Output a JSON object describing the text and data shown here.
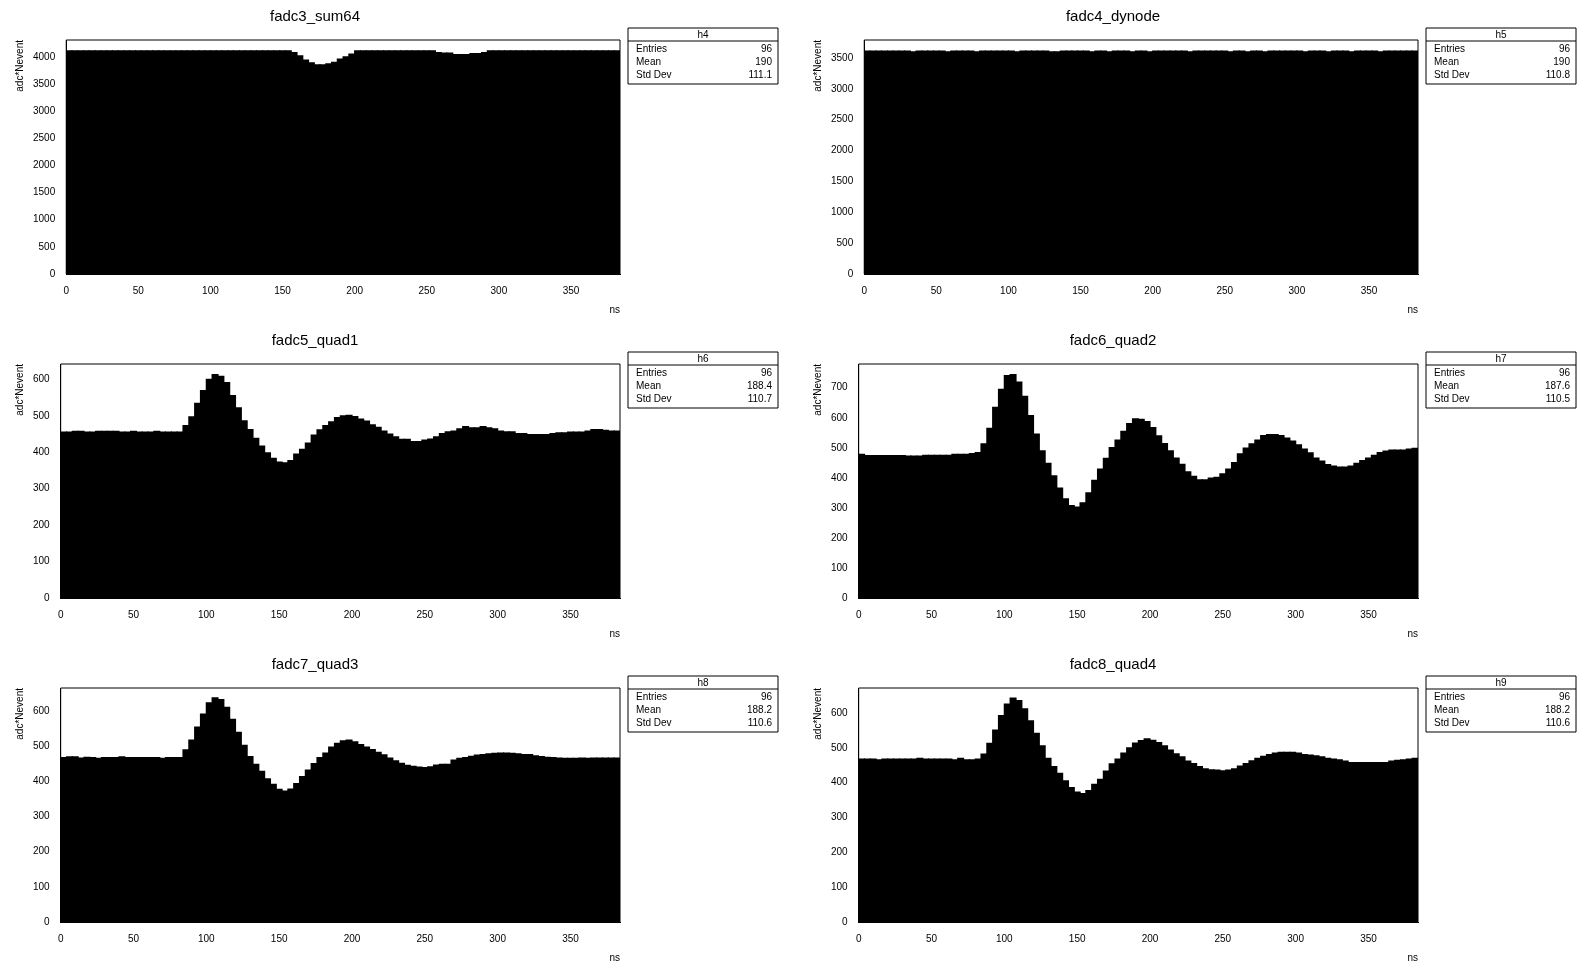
{
  "chart_data": [
    {
      "type": "histogram",
      "title": "fadc3_sum64",
      "xlabel": "ns",
      "ylabel": "adc*Nevent",
      "color": "#000000",
      "grid": false,
      "legend": false,
      "bins": [
        0,
        4,
        8,
        12,
        16,
        20,
        24,
        28,
        32,
        36,
        40,
        44,
        48,
        52,
        56,
        60,
        64,
        68,
        72,
        76,
        80,
        84,
        88,
        92,
        96,
        100,
        104,
        108,
        112,
        116,
        120,
        124,
        128,
        132,
        136,
        140,
        144,
        148,
        152,
        156,
        160,
        164,
        168,
        172,
        176,
        180,
        184,
        188,
        192,
        196,
        200,
        204,
        208,
        212,
        216,
        220,
        224,
        228,
        232,
        236,
        240,
        244,
        248,
        252,
        256,
        260,
        264,
        268,
        272,
        276,
        280,
        284,
        288,
        292,
        296,
        300,
        304,
        308,
        312,
        316,
        320,
        324,
        328,
        332,
        336,
        340,
        344,
        348,
        352,
        356,
        360,
        364,
        368,
        372,
        376,
        380,
        384
      ],
      "values": [
        4110,
        4110,
        4110,
        4110,
        4110,
        4110,
        4110,
        4110,
        4110,
        4110,
        4110,
        4110,
        4110,
        4110,
        4110,
        4110,
        4110,
        4110,
        4110,
        4110,
        4110,
        4110,
        4110,
        4110,
        4110,
        4110,
        4110,
        4110,
        4110,
        4110,
        4110,
        4110,
        4110,
        4110,
        4110,
        4110,
        4110,
        4110,
        4110,
        4080,
        4020,
        3940,
        3890,
        3850,
        3850,
        3870,
        3900,
        3960,
        4000,
        4050,
        4110,
        4110,
        4110,
        4110,
        4110,
        4110,
        4110,
        4110,
        4110,
        4110,
        4110,
        4110,
        4110,
        4110,
        4080,
        4070,
        4070,
        4040,
        4040,
        4040,
        4060,
        4060,
        4080,
        4110,
        4110,
        4110,
        4110,
        4110,
        4110,
        4110,
        4110,
        4110,
        4110,
        4110,
        4110,
        4110,
        4110,
        4110,
        4110,
        4110,
        4110,
        4110,
        4110,
        4110,
        4110,
        4110
      ],
      "xlim": [
        0,
        384
      ],
      "xticks": [
        0,
        50,
        100,
        150,
        200,
        250,
        300,
        350
      ],
      "ylim": [
        0,
        4310
      ],
      "yticks": [
        0,
        500,
        1000,
        1500,
        2000,
        2500,
        3000,
        3500,
        4000
      ],
      "annotations": [
        "h4",
        "Entries",
        "96",
        "Mean",
        "190",
        "Std Dev",
        "111.1"
      ]
    },
    {
      "type": "histogram",
      "title": "fadc4_dynode",
      "xlabel": "ns",
      "ylabel": "adc*Nevent",
      "color": "#000000",
      "grid": false,
      "legend": false,
      "bins": [
        0,
        4,
        8,
        12,
        16,
        20,
        24,
        28,
        32,
        36,
        40,
        44,
        48,
        52,
        56,
        60,
        64,
        68,
        72,
        76,
        80,
        84,
        88,
        92,
        96,
        100,
        104,
        108,
        112,
        116,
        120,
        124,
        128,
        132,
        136,
        140,
        144,
        148,
        152,
        156,
        160,
        164,
        168,
        172,
        176,
        180,
        184,
        188,
        192,
        196,
        200,
        204,
        208,
        212,
        216,
        220,
        224,
        228,
        232,
        236,
        240,
        244,
        248,
        252,
        256,
        260,
        264,
        268,
        272,
        276,
        280,
        284,
        288,
        292,
        296,
        300,
        304,
        308,
        312,
        316,
        320,
        324,
        328,
        332,
        336,
        340,
        344,
        348,
        352,
        356,
        360,
        364,
        368,
        372,
        376,
        380,
        384
      ],
      "values": [
        3610,
        3610,
        3610,
        3610,
        3610,
        3610,
        3610,
        3610,
        3600,
        3610,
        3610,
        3610,
        3610,
        3610,
        3600,
        3610,
        3610,
        3610,
        3610,
        3600,
        3610,
        3610,
        3610,
        3610,
        3610,
        3610,
        3600,
        3610,
        3610,
        3610,
        3610,
        3610,
        3600,
        3600,
        3610,
        3610,
        3610,
        3610,
        3610,
        3600,
        3610,
        3610,
        3600,
        3610,
        3610,
        3610,
        3600,
        3610,
        3610,
        3600,
        3610,
        3610,
        3610,
        3610,
        3610,
        3610,
        3600,
        3610,
        3610,
        3610,
        3610,
        3610,
        3610,
        3600,
        3610,
        3610,
        3600,
        3610,
        3610,
        3600,
        3610,
        3610,
        3610,
        3610,
        3610,
        3610,
        3600,
        3610,
        3610,
        3610,
        3600,
        3610,
        3610,
        3610,
        3600,
        3610,
        3610,
        3610,
        3610,
        3600,
        3610,
        3610,
        3610,
        3610,
        3610,
        3610
      ],
      "xlim": [
        0,
        384
      ],
      "xticks": [
        0,
        50,
        100,
        150,
        200,
        250,
        300,
        350
      ],
      "ylim": [
        0,
        3790
      ],
      "yticks": [
        0,
        500,
        1000,
        1500,
        2000,
        2500,
        3000,
        3500
      ],
      "annotations": [
        "h5",
        "Entries",
        "96",
        "Mean",
        "190",
        "Std Dev",
        "110.8"
      ]
    },
    {
      "type": "histogram",
      "title": "fadc5_quad1",
      "xlabel": "ns",
      "ylabel": "adc*Nevent",
      "color": "#000000",
      "grid": false,
      "legend": false,
      "bins": [
        0,
        4,
        8,
        12,
        16,
        20,
        24,
        28,
        32,
        36,
        40,
        44,
        48,
        52,
        56,
        60,
        64,
        68,
        72,
        76,
        80,
        84,
        88,
        92,
        96,
        100,
        104,
        108,
        112,
        116,
        120,
        124,
        128,
        132,
        136,
        140,
        144,
        148,
        152,
        156,
        160,
        164,
        168,
        172,
        176,
        180,
        184,
        188,
        192,
        196,
        200,
        204,
        208,
        212,
        216,
        220,
        224,
        228,
        232,
        236,
        240,
        244,
        248,
        252,
        256,
        260,
        264,
        268,
        272,
        276,
        280,
        284,
        288,
        292,
        296,
        300,
        304,
        308,
        312,
        316,
        320,
        324,
        328,
        332,
        336,
        340,
        344,
        348,
        352,
        356,
        360,
        364,
        368,
        372,
        376,
        380,
        384
      ],
      "values": [
        455,
        455,
        457,
        457,
        455,
        455,
        457,
        457,
        457,
        457,
        455,
        455,
        457,
        455,
        455,
        455,
        457,
        455,
        455,
        455,
        455,
        473,
        497,
        534,
        569,
        600,
        613,
        608,
        591,
        555,
        522,
        486,
        462,
        438,
        417,
        398,
        383,
        373,
        371,
        377,
        395,
        408,
        425,
        447,
        461,
        473,
        483,
        495,
        500,
        501,
        498,
        491,
        485,
        475,
        468,
        458,
        450,
        442,
        435,
        435,
        429,
        429,
        433,
        436,
        442,
        451,
        456,
        458,
        464,
        470,
        467,
        467,
        470,
        467,
        464,
        458,
        456,
        456,
        451,
        451,
        448,
        448,
        448,
        448,
        451,
        453,
        453,
        455,
        455,
        455,
        458,
        462,
        462,
        460,
        458,
        458
      ],
      "xlim": [
        0,
        384
      ],
      "xticks": [
        0,
        50,
        100,
        150,
        200,
        250,
        300,
        350
      ],
      "ylim": [
        0,
        642
      ],
      "yticks": [
        0,
        100,
        200,
        300,
        400,
        500,
        600
      ],
      "annotations": [
        "h6",
        "Entries",
        "96",
        "Mean",
        "188.4",
        "Std Dev",
        "110.7"
      ]
    },
    {
      "type": "histogram",
      "title": "fadc6_quad2",
      "xlabel": "ns",
      "ylabel": "adc*Nevent",
      "color": "#000000",
      "grid": false,
      "legend": false,
      "bins": [
        0,
        4,
        8,
        12,
        16,
        20,
        24,
        28,
        32,
        36,
        40,
        44,
        48,
        52,
        56,
        60,
        64,
        68,
        72,
        76,
        80,
        84,
        88,
        92,
        96,
        100,
        104,
        108,
        112,
        116,
        120,
        124,
        128,
        132,
        136,
        140,
        144,
        148,
        152,
        156,
        160,
        164,
        168,
        172,
        176,
        180,
        184,
        188,
        192,
        196,
        200,
        204,
        208,
        212,
        216,
        220,
        224,
        228,
        232,
        236,
        240,
        244,
        248,
        252,
        256,
        260,
        264,
        268,
        272,
        276,
        280,
        284,
        288,
        292,
        296,
        300,
        304,
        308,
        312,
        316,
        320,
        324,
        328,
        332,
        336,
        340,
        344,
        348,
        352,
        356,
        360,
        364,
        368,
        372,
        376,
        380,
        384
      ],
      "values": [
        478,
        474,
        474,
        474,
        474,
        474,
        474,
        474,
        472,
        472,
        472,
        475,
        475,
        475,
        475,
        475,
        478,
        478,
        478,
        481,
        484,
        513,
        565,
        635,
        695,
        740,
        744,
        719,
        671,
        607,
        546,
        490,
        448,
        407,
        366,
        330,
        308,
        303,
        317,
        350,
        392,
        429,
        465,
        501,
        526,
        555,
        581,
        596,
        595,
        587,
        567,
        540,
        514,
        490,
        466,
        445,
        420,
        405,
        393,
        393,
        399,
        402,
        413,
        429,
        451,
        480,
        499,
        513,
        526,
        541,
        544,
        544,
        541,
        532,
        522,
        510,
        496,
        483,
        466,
        456,
        444,
        439,
        436,
        436,
        439,
        448,
        457,
        466,
        475,
        484,
        489,
        492,
        492,
        492,
        496,
        498
      ],
      "xlim": [
        0,
        384
      ],
      "xticks": [
        0,
        50,
        100,
        150,
        200,
        250,
        300,
        350
      ],
      "ylim": [
        0,
        779
      ],
      "yticks": [
        0,
        100,
        200,
        300,
        400,
        500,
        600,
        700
      ],
      "annotations": [
        "h7",
        "Entries",
        "96",
        "Mean",
        "187.6",
        "Std Dev",
        "110.5"
      ]
    },
    {
      "type": "histogram",
      "title": "fadc7_quad3",
      "xlabel": "ns",
      "ylabel": "adc*Nevent",
      "color": "#000000",
      "grid": false,
      "legend": false,
      "bins": [
        0,
        4,
        8,
        12,
        16,
        20,
        24,
        28,
        32,
        36,
        40,
        44,
        48,
        52,
        56,
        60,
        64,
        68,
        72,
        76,
        80,
        84,
        88,
        92,
        96,
        100,
        104,
        108,
        112,
        116,
        120,
        124,
        128,
        132,
        136,
        140,
        144,
        148,
        152,
        156,
        160,
        164,
        168,
        172,
        176,
        180,
        184,
        188,
        192,
        196,
        200,
        204,
        208,
        212,
        216,
        220,
        224,
        228,
        232,
        236,
        240,
        244,
        248,
        252,
        256,
        260,
        264,
        268,
        272,
        276,
        280,
        284,
        288,
        292,
        296,
        300,
        304,
        308,
        312,
        316,
        320,
        324,
        328,
        332,
        336,
        340,
        344,
        348,
        352,
        356,
        360,
        364,
        368,
        372,
        376,
        380,
        384
      ],
      "values": [
        467,
        469,
        469,
        466,
        468,
        467,
        465,
        467,
        467,
        467,
        469,
        467,
        467,
        467,
        467,
        467,
        467,
        465,
        467,
        467,
        467,
        489,
        517,
        554,
        591,
        623,
        637,
        632,
        610,
        576,
        539,
        502,
        470,
        448,
        428,
        407,
        391,
        377,
        372,
        378,
        393,
        413,
        432,
        450,
        467,
        480,
        497,
        508,
        515,
        517,
        512,
        504,
        497,
        490,
        482,
        475,
        466,
        458,
        451,
        445,
        442,
        440,
        439,
        441,
        446,
        448,
        448,
        460,
        465,
        467,
        471,
        474,
        476,
        478,
        479,
        480,
        480,
        479,
        478,
        476,
        476,
        472,
        470,
        468,
        467,
        466,
        465,
        465,
        465,
        466,
        465,
        466,
        466,
        466,
        466,
        466
      ],
      "xlim": [
        0,
        384
      ],
      "xticks": [
        0,
        50,
        100,
        150,
        200,
        250,
        300,
        350
      ],
      "ylim": [
        0,
        665
      ],
      "yticks": [
        0,
        100,
        200,
        300,
        400,
        500,
        600
      ],
      "annotations": [
        "h8",
        "Entries",
        "96",
        "Mean",
        "188.2",
        "Std Dev",
        "110.6"
      ]
    },
    {
      "type": "histogram",
      "title": "fadc8_quad4",
      "xlabel": "ns",
      "ylabel": "adc*Nevent",
      "color": "#000000",
      "grid": false,
      "legend": false,
      "bins": [
        0,
        4,
        8,
        12,
        16,
        20,
        24,
        28,
        32,
        36,
        40,
        44,
        48,
        52,
        56,
        60,
        64,
        68,
        72,
        76,
        80,
        84,
        88,
        92,
        96,
        100,
        104,
        108,
        112,
        116,
        120,
        124,
        128,
        132,
        136,
        140,
        144,
        148,
        152,
        156,
        160,
        164,
        168,
        172,
        176,
        180,
        184,
        188,
        192,
        196,
        200,
        204,
        208,
        212,
        216,
        220,
        224,
        228,
        232,
        236,
        240,
        244,
        248,
        252,
        256,
        260,
        264,
        268,
        272,
        276,
        280,
        284,
        288,
        292,
        296,
        300,
        304,
        308,
        312,
        316,
        320,
        324,
        328,
        332,
        336,
        340,
        344,
        348,
        352,
        356,
        360,
        364,
        368,
        372,
        376,
        380,
        384
      ],
      "values": [
        468,
        468,
        468,
        466,
        468,
        468,
        468,
        468,
        468,
        468,
        470,
        468,
        468,
        468,
        468,
        468,
        466,
        470,
        466,
        466,
        468,
        482,
        513,
        551,
        593,
        626,
        643,
        636,
        612,
        578,
        542,
        506,
        470,
        446,
        427,
        405,
        386,
        373,
        369,
        377,
        395,
        410,
        433,
        454,
        468,
        485,
        500,
        514,
        521,
        526,
        522,
        515,
        506,
        494,
        483,
        474,
        462,
        455,
        446,
        440,
        437,
        436,
        434,
        436,
        440,
        448,
        455,
        463,
        470,
        476,
        481,
        485,
        487,
        487,
        487,
        485,
        481,
        479,
        477,
        474,
        470,
        468,
        466,
        462,
        458,
        458,
        458,
        458,
        458,
        458,
        458,
        462,
        464,
        466,
        468,
        470
      ],
      "xlim": [
        0,
        384
      ],
      "xticks": [
        0,
        50,
        100,
        150,
        200,
        250,
        300,
        350
      ],
      "ylim": [
        0,
        672
      ],
      "yticks": [
        0,
        100,
        200,
        300,
        400,
        500,
        600
      ],
      "annotations": [
        "h9",
        "Entries",
        "96",
        "Mean",
        "188.2",
        "Std Dev",
        "110.6"
      ]
    }
  ]
}
